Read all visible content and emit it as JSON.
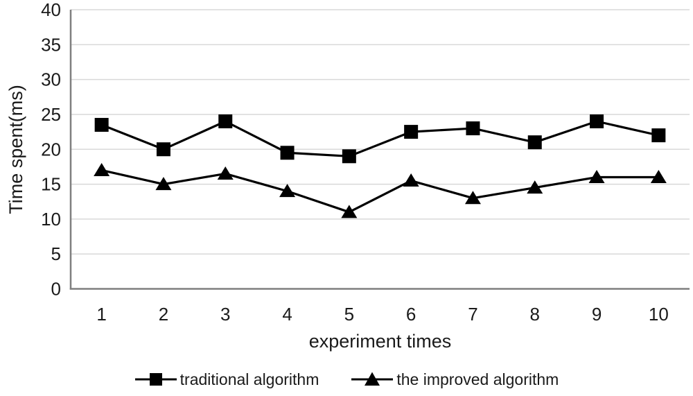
{
  "chart_data": {
    "type": "line",
    "title": "",
    "xlabel": "experiment times",
    "ylabel": "Time spent(ms)",
    "categories": [
      1,
      2,
      3,
      4,
      5,
      6,
      7,
      8,
      9,
      10
    ],
    "ylim": [
      0,
      40
    ],
    "yticks": [
      0,
      5,
      10,
      15,
      20,
      25,
      30,
      35,
      40
    ],
    "grid": "horizontal",
    "legend_position": "bottom",
    "series": [
      {
        "name": "traditional algorithm",
        "marker": "square",
        "color": "#000000",
        "values": [
          23.5,
          20,
          24,
          19.5,
          19,
          22.5,
          23,
          21,
          24,
          22
        ]
      },
      {
        "name": "the improved algorithm",
        "marker": "triangle",
        "color": "#000000",
        "values": [
          17,
          15,
          16.5,
          14,
          11,
          15.5,
          13,
          14.5,
          16,
          16
        ]
      }
    ]
  },
  "colors": {
    "background": "#ffffff",
    "gridline": "#d9d9d9",
    "axis": "#7f7f7f",
    "series": "#000000",
    "text": "#1a1a1a"
  }
}
